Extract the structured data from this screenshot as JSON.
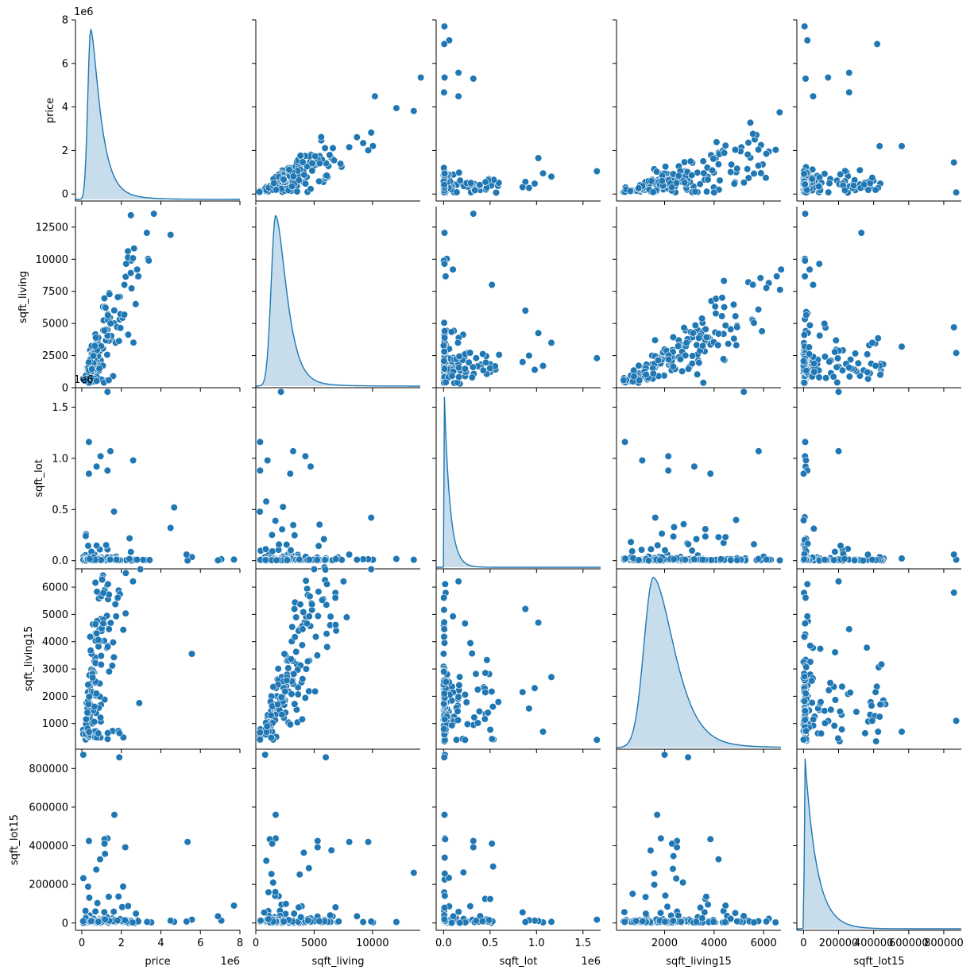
{
  "chart_data": {
    "type": "scatter",
    "kind": "pairplot",
    "diagonal_kind": "kde",
    "color": "#1f77b4",
    "grid": false,
    "variables": [
      {
        "name": "price",
        "label": "price",
        "range": [
          -320000,
          8000000
        ],
        "ticks": [
          {
            "value": 0,
            "label": "0"
          },
          {
            "value": 2000000,
            "label": "2"
          },
          {
            "value": 4000000,
            "label": "4"
          },
          {
            "value": 6000000,
            "label": "6"
          },
          {
            "value": 8000000,
            "label": "8"
          }
        ],
        "offset_text": "1e6",
        "kde_mode": 450000,
        "kde_spread": 260000,
        "kde_tail": 5.5,
        "typical_values": [
          75000,
          190000,
          280000,
          320000,
          360000,
          400000,
          440000,
          480000,
          520000,
          560000,
          600000,
          650000,
          700000,
          750000,
          800000,
          870000,
          950000,
          1050000,
          1150000,
          1300000,
          1450000,
          1650000,
          1900000,
          2200000,
          2600000,
          3100000
        ],
        "outliers": [
          7700000,
          7060000,
          6890000,
          5570000,
          5350000,
          5300000,
          4670000,
          4490000
        ]
      },
      {
        "name": "sqft_living",
        "label": "sqft_living",
        "range": [
          0,
          14100
        ],
        "ticks": [
          {
            "value": 0,
            "label": "0"
          },
          {
            "value": 5000,
            "label": "5000"
          },
          {
            "value": 10000,
            "label": "10000"
          }
        ],
        "ticks_left": [
          {
            "value": 0,
            "label": "0"
          },
          {
            "value": 2500,
            "label": "2500"
          },
          {
            "value": 5000,
            "label": "5000"
          },
          {
            "value": 7500,
            "label": "7500"
          },
          {
            "value": 10000,
            "label": "10000"
          },
          {
            "value": 12500,
            "label": "12500"
          }
        ],
        "offset_text": "",
        "kde_mode": 1700,
        "kde_spread": 680,
        "kde_tail": 3.0,
        "typical_values": [
          370,
          800,
          1000,
          1200,
          1400,
          1550,
          1700,
          1850,
          2000,
          2150,
          2300,
          2500,
          2700,
          2950,
          3200,
          3500,
          3850,
          4250,
          4700,
          5300,
          6000,
          6800
        ],
        "outliers": [
          13540,
          12050,
          10040,
          9890,
          9640,
          9200,
          8670,
          8010
        ]
      },
      {
        "name": "sqft_lot",
        "label": "sqft_lot",
        "range": [
          -80000,
          1690000
        ],
        "ticks": [
          {
            "value": 0,
            "label": "0.0"
          },
          {
            "value": 500000,
            "label": "0.5"
          },
          {
            "value": 1000000,
            "label": "1.0"
          },
          {
            "value": 1500000,
            "label": "1.5"
          }
        ],
        "ticks_left": [
          {
            "value": 0,
            "label": "0.0"
          },
          {
            "value": 500000,
            "label": "0.5"
          },
          {
            "value": 1000000,
            "label": "1.0"
          },
          {
            "value": 1500000,
            "label": "1.5"
          }
        ],
        "offset_text": "1e6",
        "kde_mode": 7500,
        "kde_spread": 5000,
        "kde_tail": 40,
        "typical_values": [
          600,
          3000,
          5000,
          6000,
          7000,
          7600,
          8500,
          9500,
          10500,
          12000,
          14000,
          17000,
          22000,
          35000,
          60000,
          100000,
          160000,
          230000,
          320000,
          420000,
          520000
        ],
        "outliers": [
          1650000,
          1160000,
          1070000,
          1020000,
          980000,
          920000,
          880000,
          850000
        ]
      },
      {
        "name": "sqft_living15",
        "label": "sqft_living15",
        "range": [
          60,
          6700
        ],
        "ticks": [
          {
            "value": 2000,
            "label": "2000"
          },
          {
            "value": 4000,
            "label": "4000"
          },
          {
            "value": 6000,
            "label": "6000"
          }
        ],
        "ticks_left": [
          {
            "value": 1000,
            "label": "1000"
          },
          {
            "value": 2000,
            "label": "2000"
          },
          {
            "value": 3000,
            "label": "3000"
          },
          {
            "value": 4000,
            "label": "4000"
          },
          {
            "value": 5000,
            "label": "5000"
          },
          {
            "value": 6000,
            "label": "6000"
          }
        ],
        "offset_text": "",
        "kde_mode": 1550,
        "kde_spread": 680,
        "kde_tail": 2.2,
        "typical_values": [
          400,
          700,
          900,
          1100,
          1250,
          1400,
          1550,
          1700,
          1850,
          2000,
          2150,
          2300,
          2500,
          2700,
          2950,
          3200,
          3500,
          3850,
          4250,
          4700,
          5200,
          5800
        ],
        "outliers": [
          6210,
          6110,
          5790,
          5610,
          4930,
          4670,
          4460,
          4180
        ]
      },
      {
        "name": "sqft_lot15",
        "label": "sqft_lot15",
        "range": [
          -38000,
          900000
        ],
        "ticks": [
          {
            "value": 0,
            "label": "0"
          },
          {
            "value": 200000,
            "label": "200000"
          },
          {
            "value": 400000,
            "label": "400000"
          },
          {
            "value": 600000,
            "label": "600000"
          },
          {
            "value": 800000,
            "label": "800000"
          }
        ],
        "ticks_left": [
          {
            "value": 0,
            "label": "0"
          },
          {
            "value": 200000,
            "label": "200000"
          },
          {
            "value": 400000,
            "label": "400000"
          },
          {
            "value": 600000,
            "label": "600000"
          },
          {
            "value": 800000,
            "label": "800000"
          }
        ],
        "offset_text": "",
        "kde_mode": 7600,
        "kde_spread": 5500,
        "kde_tail": 40,
        "typical_values": [
          650,
          3000,
          5000,
          6000,
          7000,
          7600,
          8500,
          9500,
          10500,
          12000,
          14000,
          17000,
          22000,
          35000,
          55000,
          90000,
          140000,
          200000,
          260000,
          330000,
          420000
        ],
        "outliers": [
          871000,
          858000,
          560000,
          438000,
          434000,
          425000,
          411000,
          392000
        ]
      }
    ],
    "relations": [
      {
        "x": "sqft_living",
        "y": "price",
        "slope": 280,
        "rel_noise": 0.45
      },
      {
        "x": "sqft_living15",
        "y": "price",
        "slope": 270,
        "rel_noise": 0.6
      },
      {
        "x": "sqft_living15",
        "y": "sqft_living",
        "slope": 1.05,
        "rel_noise": 0.3
      }
    ]
  }
}
